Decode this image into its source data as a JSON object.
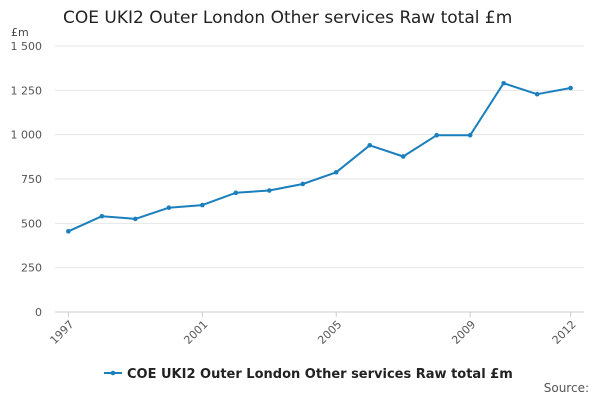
{
  "chart_data": {
    "type": "line",
    "title": "COE UKI2 Outer London Other services Raw total £m",
    "ylabel": "£m",
    "xlabel": "",
    "ylim": [
      0,
      1500
    ],
    "yticks": [
      0,
      250,
      500,
      750,
      1000,
      1250,
      1500
    ],
    "ytick_labels": [
      "0",
      "250",
      "500",
      "750",
      "1 000",
      "1 250",
      "1 500"
    ],
    "xticks": [
      1997,
      2001,
      2005,
      2009,
      2012
    ],
    "xtick_labels": [
      "1997",
      "2001",
      "2005",
      "2009",
      "2012"
    ],
    "xlim": [
      1996.6,
      2012.4
    ],
    "grid": true,
    "legend_position": "bottom",
    "series": [
      {
        "name": "COE UKI2 Outer London Other services Raw total £m",
        "color": "#1a7fbd",
        "x": [
          1997,
          1998,
          1999,
          2000,
          2001,
          2002,
          2003,
          2004,
          2005,
          2006,
          2007,
          2008,
          2009,
          2010,
          2011,
          2012
        ],
        "values": [
          455,
          540,
          525,
          588,
          603,
          672,
          685,
          722,
          788,
          940,
          877,
          997,
          997,
          1290,
          1228,
          1263
        ]
      }
    ]
  },
  "source_label": "Source:"
}
